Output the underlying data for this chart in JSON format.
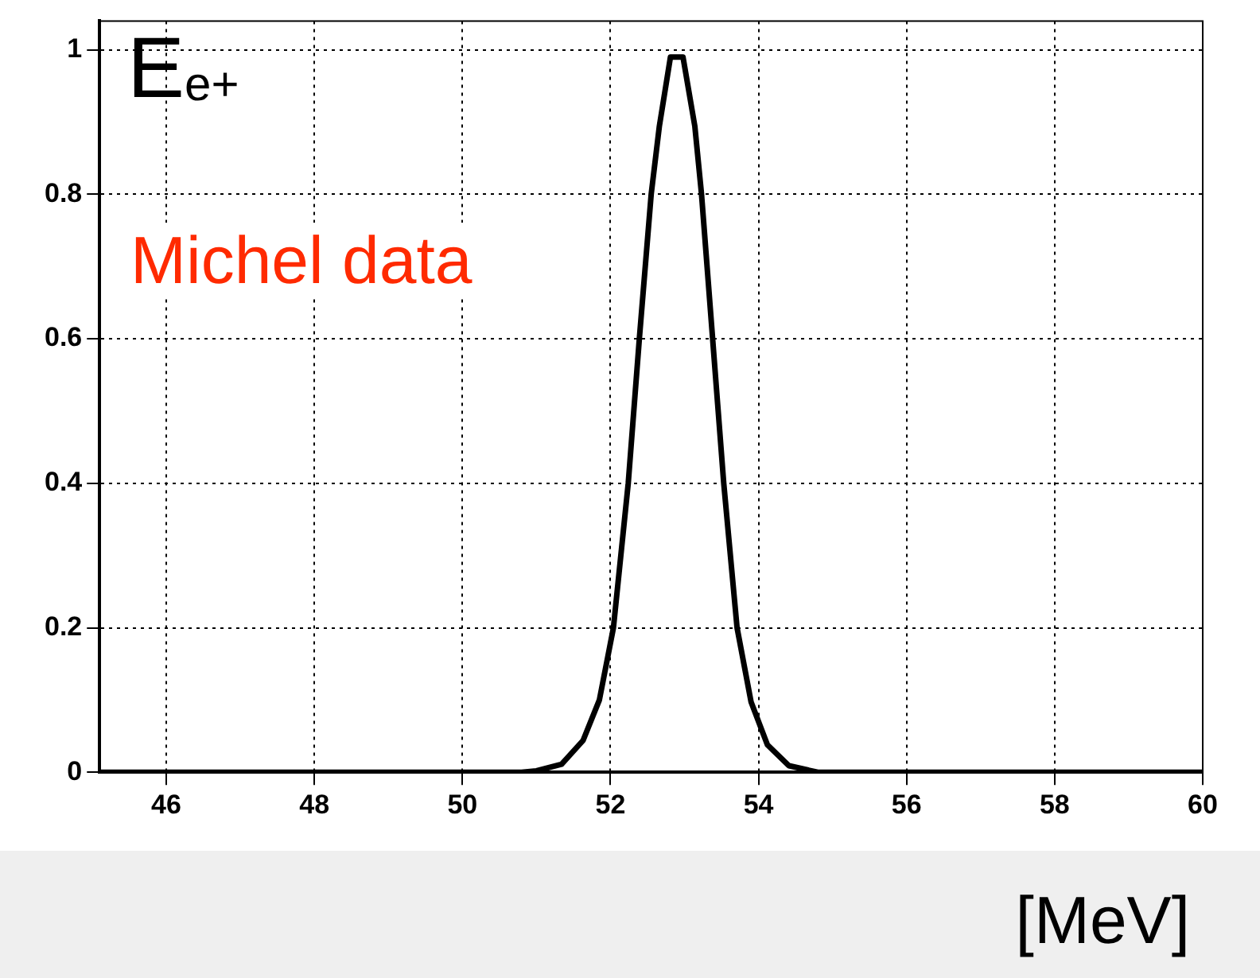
{
  "chart_data": {
    "type": "line",
    "xlabel": "[MeV]",
    "annotations": [
      "E$_{e+}$",
      "Michel data"
    ],
    "xlim": [
      45.1,
      60
    ],
    "xticks": [
      46,
      48,
      50,
      52,
      54,
      56,
      58,
      60
    ],
    "ylim": [
      0,
      1.04
    ],
    "yticks": [
      0,
      0.2,
      0.4,
      0.6,
      0.8,
      1
    ],
    "grid": true,
    "marker": "none",
    "line_style": "solid",
    "legend": false,
    "series": [
      {
        "color": "#000000",
        "x": [
          45.1,
          50.8,
          51.0,
          51.34,
          51.63,
          51.85,
          52.04,
          52.24,
          52.39,
          52.55,
          52.66,
          52.81,
          52.98,
          53.14,
          53.23,
          53.38,
          53.53,
          53.71,
          53.9,
          54.12,
          54.41,
          54.8,
          60
        ],
        "values": [
          0,
          0,
          0.002,
          0.011,
          0.044,
          0.1,
          0.2,
          0.4,
          0.6,
          0.8,
          0.894,
          0.99,
          0.99,
          0.894,
          0.8,
          0.6,
          0.4,
          0.2,
          0.097,
          0.038,
          0.009,
          0,
          0
        ]
      }
    ]
  }
}
